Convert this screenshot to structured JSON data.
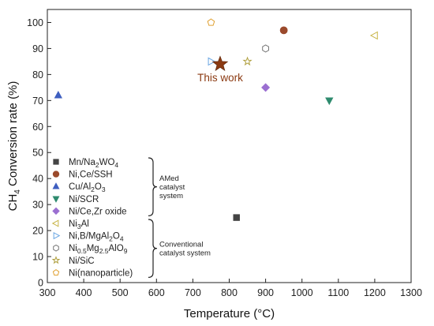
{
  "chart_data": {
    "type": "scatter",
    "xlabel": "Temperature (°C)",
    "ylabel_parts": {
      "pre": "CH",
      "sub": "4",
      "post": " Conversion rate (%)"
    },
    "xlim": [
      300,
      1300
    ],
    "ylim": [
      0,
      105
    ],
    "x_ticks": [
      "300",
      "400",
      "500",
      "600",
      "700",
      "800",
      "900",
      "1000",
      "1100",
      "1200",
      "1300"
    ],
    "y_ticks": [
      "0",
      "10",
      "20",
      "30",
      "40",
      "50",
      "60",
      "70",
      "80",
      "90",
      "100"
    ],
    "x_tick_values": [
      300,
      400,
      500,
      600,
      700,
      800,
      900,
      1000,
      1100,
      1200,
      1300
    ],
    "y_tick_values": [
      0,
      10,
      20,
      30,
      40,
      50,
      60,
      70,
      80,
      90,
      100
    ],
    "grid": false,
    "legend_placement": "lower-left",
    "series": [
      {
        "name": "Mn/Na2WO4",
        "label_parts": [
          [
            "Mn/Na",
            ""
          ],
          [
            "2",
            "sub"
          ],
          [
            "WO",
            ""
          ],
          [
            "4",
            "sub"
          ]
        ],
        "marker": "square",
        "color": "#444444",
        "filled": true,
        "group": "amed",
        "points": [
          [
            820,
            25
          ]
        ]
      },
      {
        "name": "Ni,Ce/SSH",
        "label_parts": [
          [
            "Ni,Ce/SSH",
            ""
          ]
        ],
        "marker": "circle",
        "color": "#9b4a2c",
        "filled": true,
        "group": "amed",
        "points": [
          [
            950,
            97
          ]
        ]
      },
      {
        "name": "Cu/Al2O3",
        "label_parts": [
          [
            "Cu/Al",
            ""
          ],
          [
            "2",
            "sub"
          ],
          [
            "O",
            ""
          ],
          [
            "3",
            "sub"
          ]
        ],
        "marker": "triangle-up",
        "color": "#3f5fc0",
        "filled": true,
        "group": "amed",
        "points": [
          [
            330,
            72
          ]
        ]
      },
      {
        "name": "Ni/SCR",
        "label_parts": [
          [
            "Ni/SCR",
            ""
          ]
        ],
        "marker": "triangle-down",
        "color": "#2e8b6e",
        "filled": true,
        "group": "amed",
        "points": [
          [
            1075,
            70
          ]
        ]
      },
      {
        "name": "Ni/Ce,Zr oxide",
        "label_parts": [
          [
            "Ni/Ce,Zr oxide",
            ""
          ]
        ],
        "marker": "diamond",
        "color": "#9b6fd1",
        "filled": true,
        "group": "amed",
        "points": [
          [
            900,
            75
          ]
        ]
      },
      {
        "name": "Ni3Al",
        "label_parts": [
          [
            "Ni",
            ""
          ],
          [
            "3",
            "sub"
          ],
          [
            "Al",
            ""
          ]
        ],
        "marker": "triangle-left",
        "color": "#c9b64a",
        "filled": false,
        "group": "conv",
        "points": [
          [
            1200,
            95
          ]
        ]
      },
      {
        "name": "Ni,B/MgAl2O4",
        "label_parts": [
          [
            "Ni,B/MgAl",
            ""
          ],
          [
            "2",
            "sub"
          ],
          [
            "O",
            ""
          ],
          [
            "4",
            "sub"
          ]
        ],
        "marker": "triangle-right",
        "color": "#6aa6e3",
        "filled": false,
        "group": "conv",
        "points": [
          [
            750,
            85
          ]
        ]
      },
      {
        "name": "Ni0.5Mg2.5AlO9",
        "label_parts": [
          [
            "Ni",
            ""
          ],
          [
            "0.5",
            "sub"
          ],
          [
            "Mg",
            ""
          ],
          [
            "2.5",
            "sub"
          ],
          [
            "AlO",
            ""
          ],
          [
            "9",
            "sub"
          ]
        ],
        "marker": "hexagon",
        "color": "#777777",
        "filled": false,
        "group": "conv",
        "points": [
          [
            900,
            90
          ]
        ]
      },
      {
        "name": "Ni/SiC",
        "label_parts": [
          [
            "Ni/SiC",
            ""
          ]
        ],
        "marker": "star",
        "color": "#b0a040",
        "filled": false,
        "group": "conv",
        "points": [
          [
            850,
            85
          ]
        ]
      },
      {
        "name": "Ni(nanoparticle)",
        "label_parts": [
          [
            "Ni(nanoparticle)",
            ""
          ]
        ],
        "marker": "pentagon",
        "color": "#e0a030",
        "filled": false,
        "group": "conv",
        "points": [
          [
            750,
            100
          ]
        ]
      }
    ],
    "this_work": {
      "label": "This work",
      "x": 775,
      "y": 84,
      "color": "#8b3a12"
    },
    "legend_groups": [
      {
        "key": "amed",
        "lines": [
          "AMed",
          "catalyst",
          "system"
        ]
      },
      {
        "key": "conv",
        "lines": [
          "Conventional",
          "catalyst system"
        ]
      }
    ]
  }
}
